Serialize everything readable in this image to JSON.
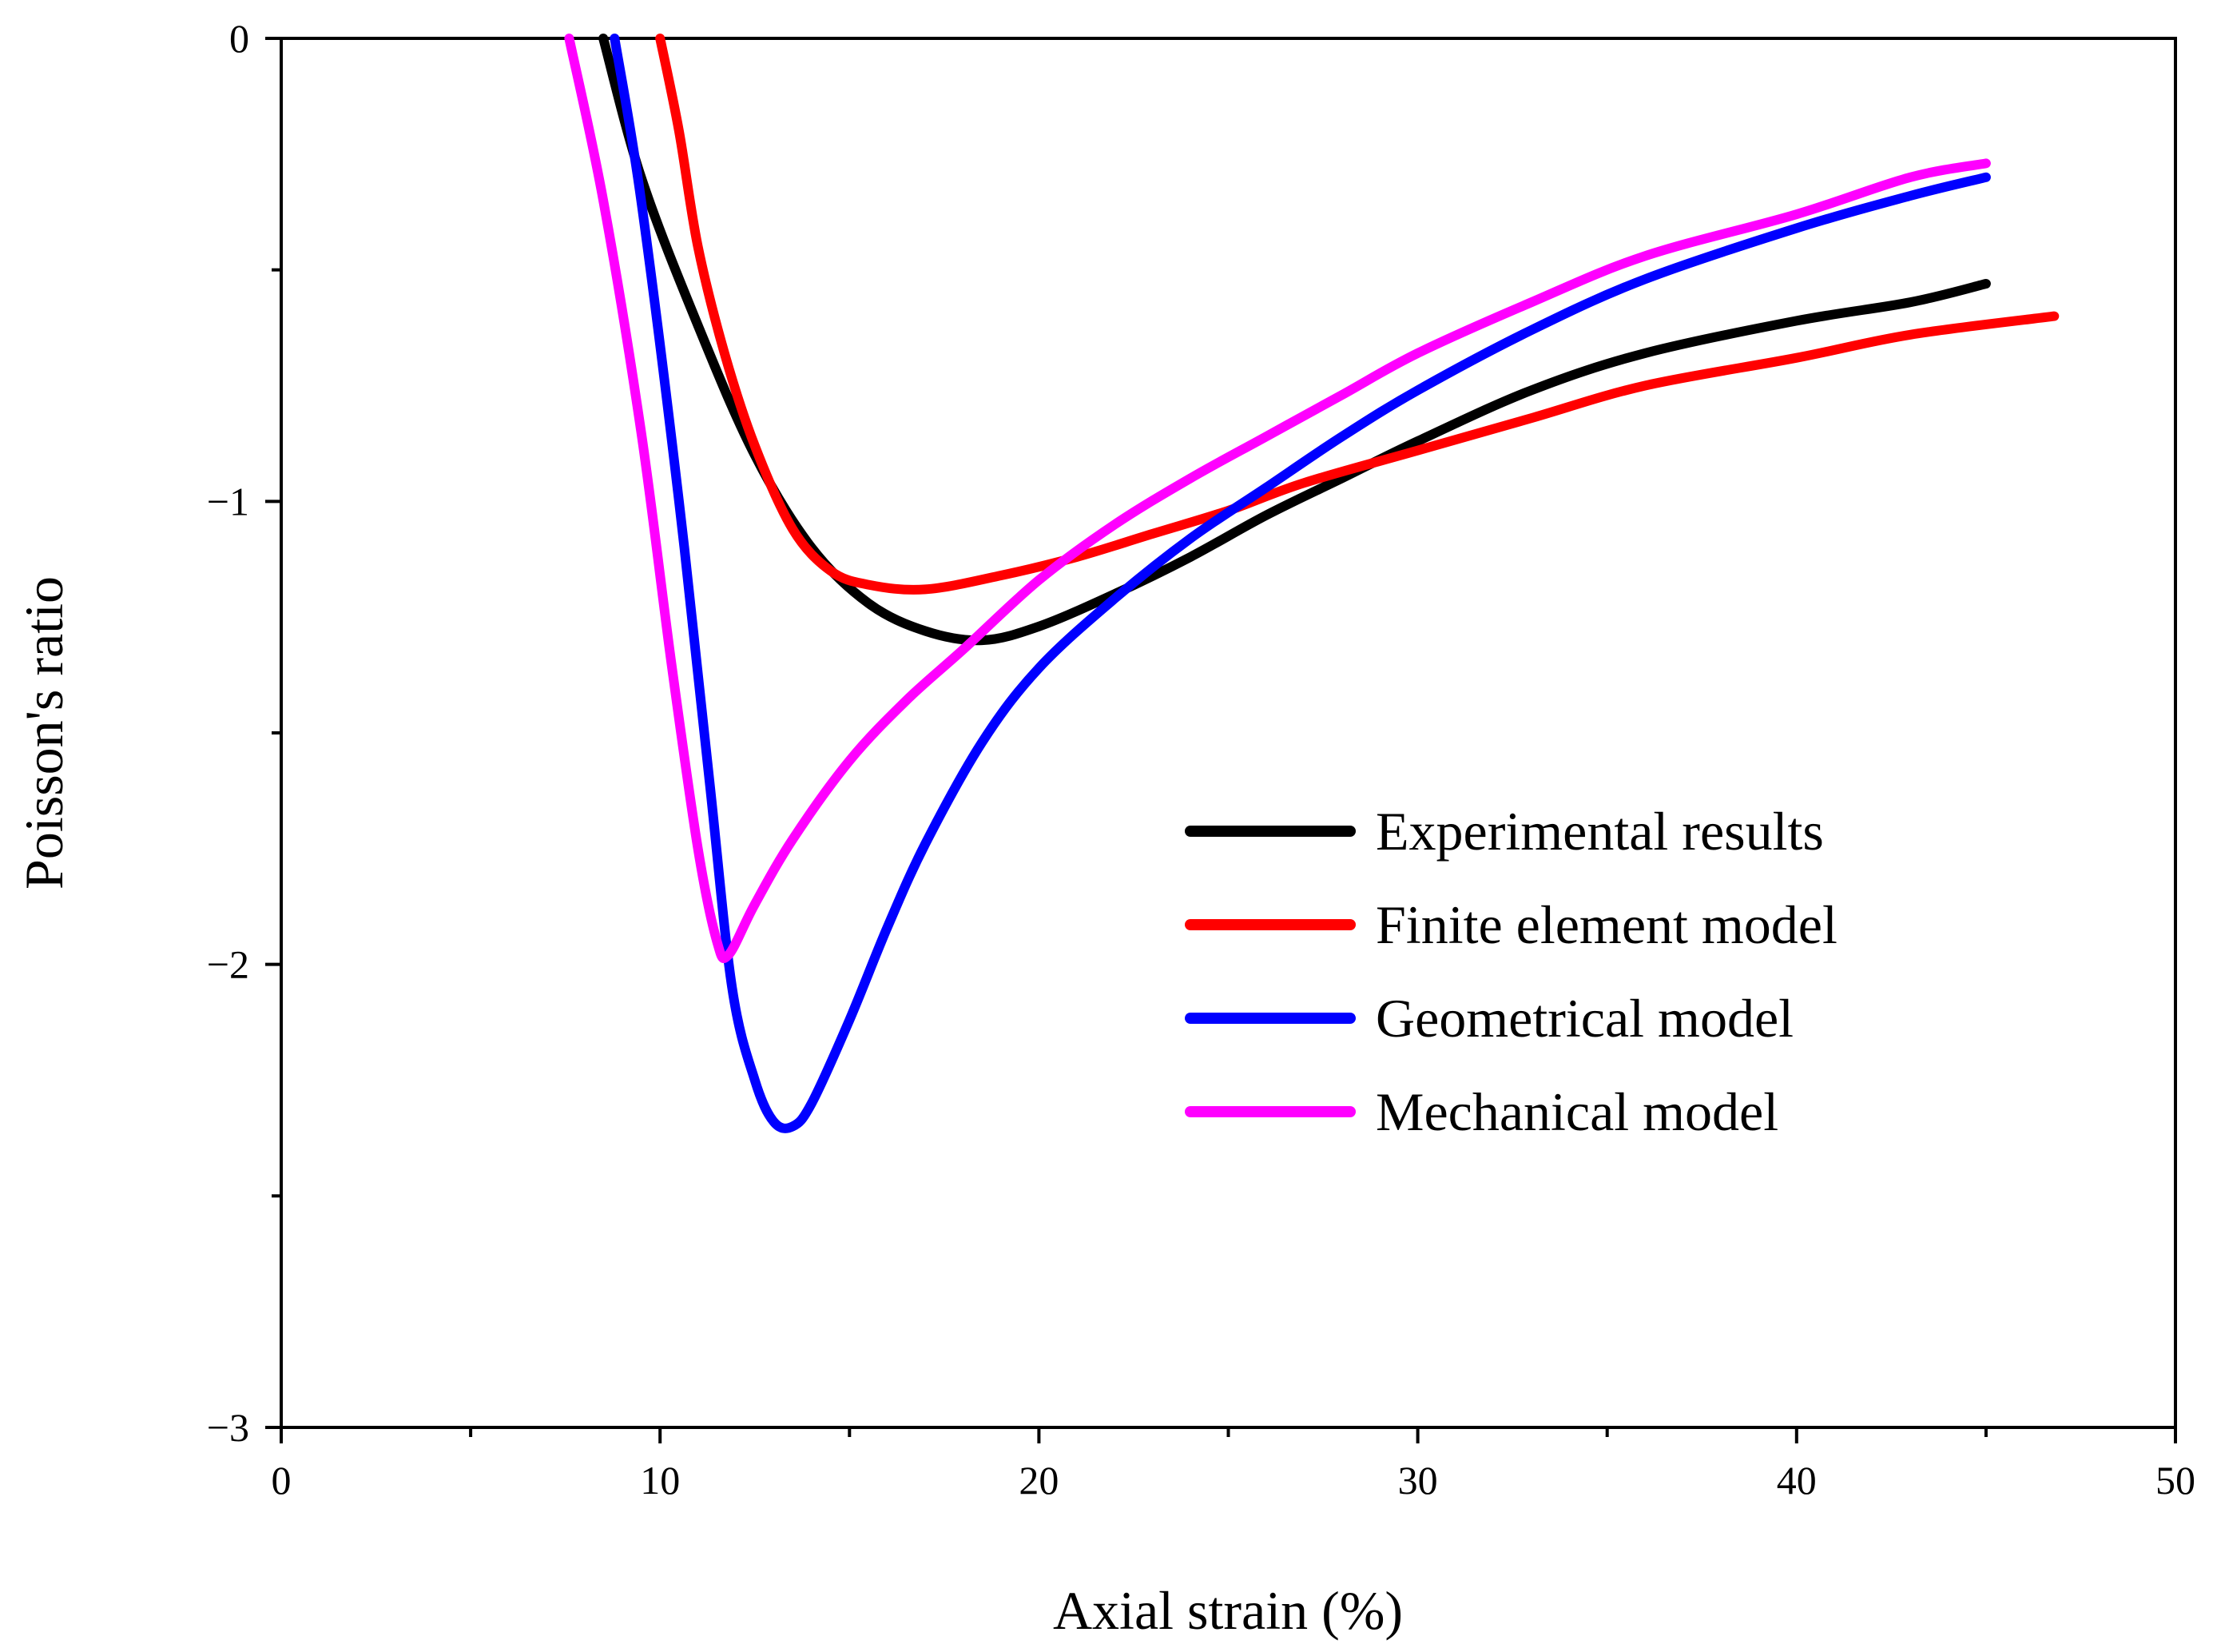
{
  "chart_data": {
    "type": "line",
    "title": "",
    "xlabel": "Axial strain (%)",
    "ylabel": "Poisson's ratio",
    "xlim": [
      0,
      50
    ],
    "ylim": [
      -3,
      0
    ],
    "x_ticks": [
      0,
      10,
      20,
      30,
      40,
      50
    ],
    "x_tick_labels": [
      "0",
      "10",
      "20",
      "30",
      "40",
      "50"
    ],
    "y_ticks": [
      0,
      -1,
      -2,
      -3
    ],
    "y_tick_labels": [
      "0",
      "−1",
      "−2",
      "−3"
    ],
    "grid": false,
    "legend_position": "center-right",
    "series": [
      {
        "name": "Experimental results",
        "color": "#000000",
        "points": [
          [
            8.5,
            0
          ],
          [
            9.5,
            -0.3
          ],
          [
            11,
            -0.62
          ],
          [
            12.5,
            -0.9
          ],
          [
            14,
            -1.1
          ],
          [
            15.5,
            -1.22
          ],
          [
            17,
            -1.28
          ],
          [
            18.5,
            -1.3
          ],
          [
            20,
            -1.27
          ],
          [
            22,
            -1.2
          ],
          [
            24,
            -1.12
          ],
          [
            26,
            -1.03
          ],
          [
            28,
            -0.95
          ],
          [
            30,
            -0.87
          ],
          [
            33,
            -0.76
          ],
          [
            36,
            -0.68
          ],
          [
            40,
            -0.61
          ],
          [
            43,
            -0.57
          ],
          [
            45,
            -0.53
          ]
        ]
      },
      {
        "name": "Finite element model",
        "color": "#ff0000",
        "points": [
          [
            10,
            0
          ],
          [
            10.5,
            -0.2
          ],
          [
            11,
            -0.45
          ],
          [
            11.7,
            -0.68
          ],
          [
            12.5,
            -0.88
          ],
          [
            13.5,
            -1.06
          ],
          [
            14.5,
            -1.15
          ],
          [
            15.5,
            -1.18
          ],
          [
            17,
            -1.19
          ],
          [
            19,
            -1.16
          ],
          [
            21,
            -1.12
          ],
          [
            23,
            -1.07
          ],
          [
            25,
            -1.02
          ],
          [
            27,
            -0.96
          ],
          [
            30,
            -0.89
          ],
          [
            33,
            -0.82
          ],
          [
            36,
            -0.75
          ],
          [
            40,
            -0.69
          ],
          [
            43,
            -0.64
          ],
          [
            46.8,
            -0.6
          ]
        ]
      },
      {
        "name": "Geometrical model",
        "color": "#0000ff",
        "points": [
          [
            8.8,
            0
          ],
          [
            9.5,
            -0.35
          ],
          [
            10.5,
            -1.0
          ],
          [
            11.3,
            -1.6
          ],
          [
            11.9,
            -2.05
          ],
          [
            12.5,
            -2.25
          ],
          [
            13,
            -2.34
          ],
          [
            13.5,
            -2.35
          ],
          [
            14,
            -2.3
          ],
          [
            15,
            -2.12
          ],
          [
            16,
            -1.92
          ],
          [
            17,
            -1.74
          ],
          [
            18.5,
            -1.52
          ],
          [
            20,
            -1.36
          ],
          [
            22,
            -1.21
          ],
          [
            24,
            -1.08
          ],
          [
            26,
            -0.97
          ],
          [
            28,
            -0.86
          ],
          [
            30,
            -0.76
          ],
          [
            33,
            -0.63
          ],
          [
            36,
            -0.52
          ],
          [
            40,
            -0.41
          ],
          [
            43,
            -0.34
          ],
          [
            45,
            -0.3
          ]
        ]
      },
      {
        "name": "Mechanical model",
        "color": "#ff00ff",
        "points": [
          [
            7.6,
            0
          ],
          [
            8.5,
            -0.35
          ],
          [
            9.5,
            -0.85
          ],
          [
            10.3,
            -1.35
          ],
          [
            11,
            -1.75
          ],
          [
            11.5,
            -1.95
          ],
          [
            11.8,
            -1.98
          ],
          [
            12.5,
            -1.87
          ],
          [
            13.5,
            -1.73
          ],
          [
            15,
            -1.56
          ],
          [
            16.5,
            -1.43
          ],
          [
            18,
            -1.32
          ],
          [
            20,
            -1.17
          ],
          [
            22,
            -1.05
          ],
          [
            24,
            -0.95
          ],
          [
            26,
            -0.86
          ],
          [
            28,
            -0.77
          ],
          [
            30,
            -0.68
          ],
          [
            33,
            -0.57
          ],
          [
            36,
            -0.47
          ],
          [
            40,
            -0.38
          ],
          [
            43,
            -0.3
          ],
          [
            45,
            -0.27
          ]
        ]
      }
    ]
  }
}
